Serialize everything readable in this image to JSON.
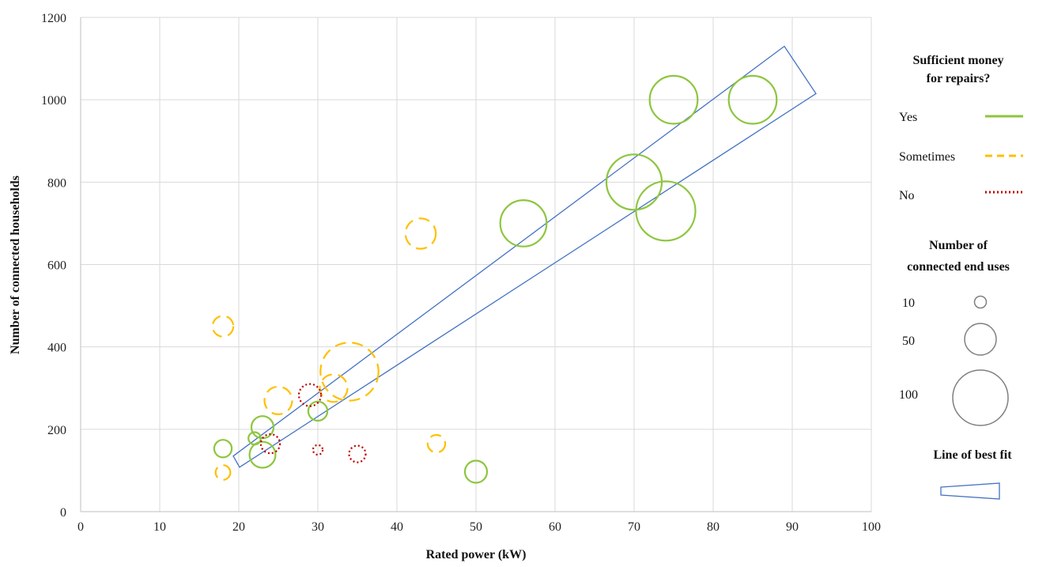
{
  "chart_data": {
    "type": "scatter",
    "subtype": "bubble",
    "title": "",
    "xlabel": "Rated power (kW)",
    "ylabel": "Number of connected households",
    "xlim": [
      0,
      100
    ],
    "ylim": [
      0,
      1200
    ],
    "xticks": [
      0,
      10,
      20,
      30,
      40,
      50,
      60,
      70,
      80,
      90,
      100
    ],
    "yticks": [
      0,
      200,
      400,
      600,
      800,
      1000,
      1200
    ],
    "grid": true,
    "legend_position": "right",
    "colors": {
      "yes": "#8dc63f",
      "sometimes": "#ffc000",
      "no": "#c00000",
      "fit": "#4472c4",
      "size_ref": "#7f7f7f"
    },
    "series": [
      {
        "name": "Yes",
        "style": "solid",
        "points": [
          {
            "x": 18,
            "y": 153,
            "size": 10
          },
          {
            "x": 22,
            "y": 178,
            "size": 5
          },
          {
            "x": 23,
            "y": 205,
            "size": 16
          },
          {
            "x": 23,
            "y": 138,
            "size": 22
          },
          {
            "x": 30,
            "y": 244,
            "size": 12
          },
          {
            "x": 50,
            "y": 97,
            "size": 16
          },
          {
            "x": 56,
            "y": 700,
            "size": 70
          },
          {
            "x": 70,
            "y": 800,
            "size": 100
          },
          {
            "x": 74,
            "y": 730,
            "size": 115
          },
          {
            "x": 75,
            "y": 1000,
            "size": 75
          },
          {
            "x": 85,
            "y": 1000,
            "size": 75
          }
        ]
      },
      {
        "name": "Sometimes",
        "style": "dashed",
        "points": [
          {
            "x": 18,
            "y": 450,
            "size": 14
          },
          {
            "x": 18,
            "y": 95,
            "size": 7
          },
          {
            "x": 25,
            "y": 270,
            "size": 25
          },
          {
            "x": 32,
            "y": 300,
            "size": 25
          },
          {
            "x": 34,
            "y": 340,
            "size": 110
          },
          {
            "x": 43,
            "y": 675,
            "size": 30
          },
          {
            "x": 45,
            "y": 165,
            "size": 10
          }
        ]
      },
      {
        "name": "No",
        "style": "dotted",
        "points": [
          {
            "x": 24,
            "y": 165,
            "size": 12
          },
          {
            "x": 29,
            "y": 283,
            "size": 16
          },
          {
            "x": 30,
            "y": 150,
            "size": 3
          },
          {
            "x": 35,
            "y": 140,
            "size": 9
          }
        ]
      }
    ],
    "best_fit_band": [
      {
        "x": 19.3,
        "y": 135
      },
      {
        "x": 89,
        "y": 1130
      },
      {
        "x": 93,
        "y": 1015
      },
      {
        "x": 20.1,
        "y": 108
      }
    ]
  },
  "legend": {
    "repairs_title_line1": "Sufficient money",
    "repairs_title_line2": "for repairs?",
    "items": [
      {
        "label": "Yes",
        "style": "solid",
        "color": "#8dc63f"
      },
      {
        "label": "Sometimes",
        "style": "dashed",
        "color": "#ffc000"
      },
      {
        "label": "No",
        "style": "dotted",
        "color": "#c00000"
      }
    ],
    "size_title_line1": "Number of",
    "size_title_line2": "connected end uses",
    "sizes": [
      {
        "label": "10",
        "value": 10
      },
      {
        "label": "50",
        "value": 50
      },
      {
        "label": "100",
        "value": 100
      }
    ],
    "fit_title": "Line of best fit"
  }
}
